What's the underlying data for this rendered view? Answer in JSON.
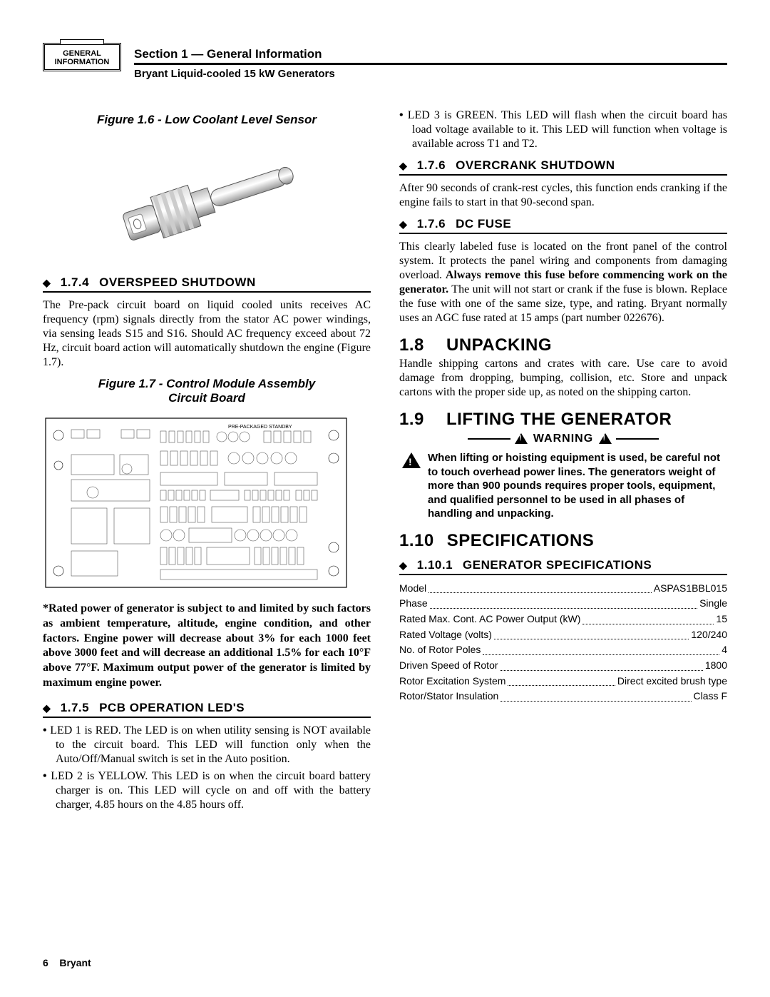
{
  "tab": {
    "line1": "GENERAL",
    "line2": "INFORMATION"
  },
  "header": {
    "section": "Section 1 — General Information",
    "product": "Bryant Liquid-cooled 15 kW Generators"
  },
  "left": {
    "fig16_caption": "Figure 1.6 - Low Coolant Level Sensor",
    "s174": {
      "num": "1.7.4",
      "title": "OVERSPEED SHUTDOWN",
      "body": "The Pre-pack circuit board on liquid cooled units receives AC frequency (rpm) signals directly from the stator AC power windings, via sensing leads S15 and S16. Should AC frequency exceed about 72 Hz, circuit board action will automatically shutdown the engine (Figure 1.7)."
    },
    "fig17_caption_l1": "Figure 1.7 - Control Module Assembly",
    "fig17_caption_l2": "Circuit Board",
    "note": "*Rated power of generator is subject to and limited by such factors as ambient temperature, altitude, engine condition, and other factors. Engine power will decrease about 3% for each 1000 feet above 3000 feet and will decrease an additional 1.5% for each 10°F above 77°F.  Maximum output power of the generator is limited by maximum engine power.",
    "s175": {
      "num": "1.7.5",
      "title": "PCB OPERATION LED'S",
      "li1": "LED 1 is RED. The LED is on when utility sensing is NOT available to the circuit board. This LED will function only when the Auto/Off/Manual switch is set in the Auto position.",
      "li2": "LED 2 is YELLOW. This LED is on when the circuit board battery charger is on. This LED will cycle on and off with the battery charger, 4.85 hours on the 4.85 hours off."
    }
  },
  "right": {
    "led3": "LED 3 is GREEN. This LED will flash when the circuit board has load voltage available to it. This LED will function when voltage is available across T1 and T2.",
    "s176a": {
      "num": "1.7.6",
      "title": "OVERCRANK SHUTDOWN",
      "body": "After 90 seconds of crank-rest cycles, this function ends cranking if the engine fails to start in that 90-second span."
    },
    "s176b": {
      "num": "1.7.6",
      "title": "DC FUSE",
      "body_pre": "This clearly labeled fuse is located on the front panel of the control system. It protects the panel wiring and components from damaging overload. ",
      "body_bold": "Always remove this fuse before commencing work on the generator.",
      "body_post": "  The unit will not start or crank if the fuse is blown.  Replace the fuse with one of the same size, type, and rating. Bryant normally uses an AGC fuse rated at 15 amps (part number 022676)."
    },
    "s18": {
      "num": "1.8",
      "title": "UNPACKING",
      "body": "Handle shipping cartons and crates with care. Use care to avoid damage from dropping, bumping, collision, etc. Store and unpack cartons with the proper side up, as noted on the shipping carton."
    },
    "s19": {
      "num": "1.9",
      "title": "LIFTING THE GENERATOR",
      "warning_label": "WARNING",
      "warning_body": "When lifting or hoisting equipment is used, be careful not to touch overhead power lines. The generators weight of more than 900 pounds requires proper tools, equipment, and qualified personnel to be used in all phases of handling and unpacking."
    },
    "s110": {
      "num": "1.10",
      "title": "SPECIFICATIONS"
    },
    "s1101": {
      "num": "1.10.1",
      "title": "GENERATOR SPECIFICATIONS"
    },
    "specs": [
      {
        "label": "Model",
        "value": "ASPAS1BBL015"
      },
      {
        "label": "Phase",
        "value": "Single"
      },
      {
        "label": "Rated Max. Cont. AC Power Output (kW)",
        "value": "15"
      },
      {
        "label": "Rated Voltage (volts)",
        "value": "120/240"
      },
      {
        "label": "No. of Rotor Poles",
        "value": "4"
      },
      {
        "label": "Driven Speed of Rotor",
        "value": "1800"
      },
      {
        "label": "Rotor Excitation System",
        "value": "Direct excited brush type"
      },
      {
        "label": "Rotor/Stator Insulation",
        "value": "Class F"
      }
    ]
  },
  "footer": {
    "page": "6",
    "brand": "Bryant"
  }
}
